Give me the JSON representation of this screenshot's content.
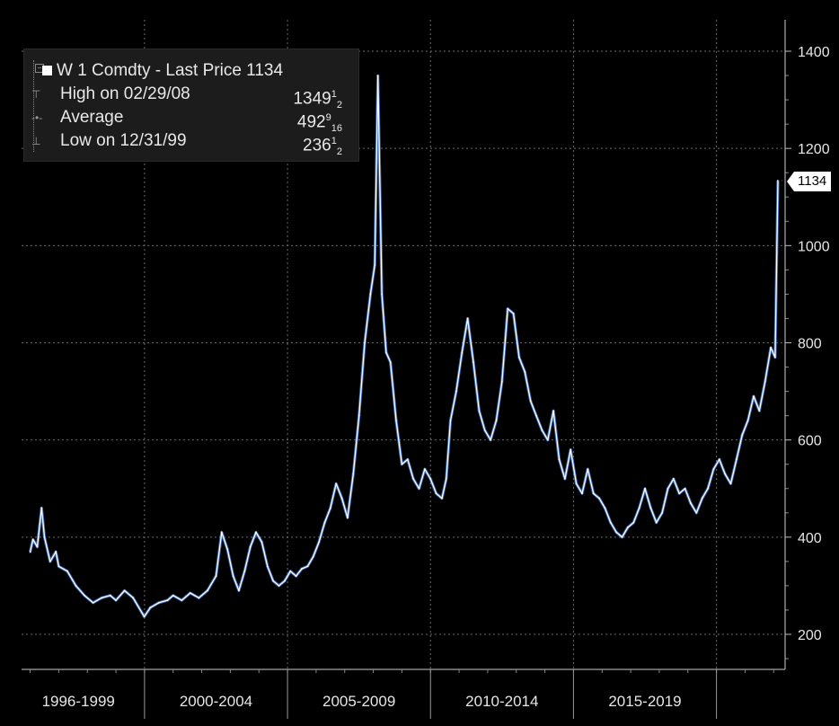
{
  "chart_data": {
    "type": "line",
    "ylim": [
      130,
      1440
    ],
    "ytick_labels": [
      "200",
      "400",
      "600",
      "800",
      "1000",
      "1200",
      "1400"
    ],
    "x_periods": [
      "1996-1999",
      "2000-2004",
      "2005-2009",
      "2010-2014",
      "2015-2019"
    ],
    "grid": true,
    "series": [
      {
        "points": [
          [
            1996.0,
            370
          ],
          [
            1996.1,
            395
          ],
          [
            1996.25,
            380
          ],
          [
            1996.4,
            460
          ],
          [
            1996.5,
            400
          ],
          [
            1996.7,
            350
          ],
          [
            1996.9,
            370
          ],
          [
            1997.0,
            340
          ],
          [
            1997.3,
            330
          ],
          [
            1997.6,
            300
          ],
          [
            1997.9,
            280
          ],
          [
            1998.2,
            265
          ],
          [
            1998.5,
            275
          ],
          [
            1998.8,
            280
          ],
          [
            1999.0,
            270
          ],
          [
            1999.3,
            290
          ],
          [
            1999.6,
            275
          ],
          [
            1999.99,
            236.5
          ],
          [
            2000.2,
            255
          ],
          [
            2000.5,
            265
          ],
          [
            2000.8,
            270
          ],
          [
            2001.0,
            280
          ],
          [
            2001.3,
            270
          ],
          [
            2001.6,
            285
          ],
          [
            2001.9,
            275
          ],
          [
            2002.2,
            290
          ],
          [
            2002.5,
            320
          ],
          [
            2002.7,
            410
          ],
          [
            2002.9,
            375
          ],
          [
            2003.1,
            320
          ],
          [
            2003.3,
            290
          ],
          [
            2003.5,
            330
          ],
          [
            2003.7,
            380
          ],
          [
            2003.9,
            410
          ],
          [
            2004.1,
            390
          ],
          [
            2004.3,
            340
          ],
          [
            2004.5,
            310
          ],
          [
            2004.7,
            300
          ],
          [
            2004.9,
            310
          ],
          [
            2005.1,
            330
          ],
          [
            2005.3,
            320
          ],
          [
            2005.5,
            335
          ],
          [
            2005.7,
            340
          ],
          [
            2005.9,
            360
          ],
          [
            2006.1,
            390
          ],
          [
            2006.3,
            430
          ],
          [
            2006.5,
            460
          ],
          [
            2006.7,
            510
          ],
          [
            2006.9,
            480
          ],
          [
            2007.1,
            440
          ],
          [
            2007.3,
            530
          ],
          [
            2007.5,
            650
          ],
          [
            2007.7,
            800
          ],
          [
            2007.9,
            900
          ],
          [
            2008.05,
            960
          ],
          [
            2008.16,
            1349.5
          ],
          [
            2008.3,
            900
          ],
          [
            2008.45,
            780
          ],
          [
            2008.6,
            760
          ],
          [
            2008.8,
            640
          ],
          [
            2009.0,
            550
          ],
          [
            2009.2,
            560
          ],
          [
            2009.4,
            520
          ],
          [
            2009.6,
            500
          ],
          [
            2009.8,
            540
          ],
          [
            2010.0,
            520
          ],
          [
            2010.2,
            490
          ],
          [
            2010.4,
            480
          ],
          [
            2010.55,
            520
          ],
          [
            2010.7,
            640
          ],
          [
            2010.9,
            700
          ],
          [
            2011.1,
            780
          ],
          [
            2011.3,
            850
          ],
          [
            2011.5,
            760
          ],
          [
            2011.7,
            660
          ],
          [
            2011.9,
            620
          ],
          [
            2012.1,
            600
          ],
          [
            2012.3,
            640
          ],
          [
            2012.5,
            720
          ],
          [
            2012.7,
            870
          ],
          [
            2012.9,
            860
          ],
          [
            2013.1,
            770
          ],
          [
            2013.3,
            740
          ],
          [
            2013.5,
            680
          ],
          [
            2013.7,
            650
          ],
          [
            2013.9,
            620
          ],
          [
            2014.1,
            600
          ],
          [
            2014.3,
            660
          ],
          [
            2014.5,
            560
          ],
          [
            2014.7,
            520
          ],
          [
            2014.9,
            580
          ],
          [
            2015.1,
            510
          ],
          [
            2015.3,
            490
          ],
          [
            2015.5,
            540
          ],
          [
            2015.7,
            490
          ],
          [
            2015.9,
            480
          ],
          [
            2016.1,
            460
          ],
          [
            2016.3,
            430
          ],
          [
            2016.5,
            410
          ],
          [
            2016.7,
            400
          ],
          [
            2016.9,
            420
          ],
          [
            2017.1,
            430
          ],
          [
            2017.3,
            460
          ],
          [
            2017.5,
            500
          ],
          [
            2017.7,
            460
          ],
          [
            2017.9,
            430
          ],
          [
            2018.1,
            450
          ],
          [
            2018.3,
            500
          ],
          [
            2018.5,
            520
          ],
          [
            2018.7,
            490
          ],
          [
            2018.9,
            500
          ],
          [
            2019.1,
            470
          ],
          [
            2019.3,
            450
          ],
          [
            2019.5,
            480
          ],
          [
            2019.7,
            500
          ],
          [
            2019.9,
            540
          ],
          [
            2020.1,
            560
          ],
          [
            2020.3,
            530
          ],
          [
            2020.5,
            510
          ],
          [
            2020.7,
            560
          ],
          [
            2020.9,
            610
          ],
          [
            2021.1,
            640
          ],
          [
            2021.3,
            690
          ],
          [
            2021.5,
            660
          ],
          [
            2021.7,
            720
          ],
          [
            2021.9,
            790
          ],
          [
            2022.05,
            770
          ],
          [
            2022.15,
            1134
          ]
        ]
      }
    ],
    "last_price": 1134,
    "legend": {
      "title": "W 1 Comdty - Last Price 1134",
      "rows": [
        {
          "label": "High on 02/29/08",
          "value": "1349",
          "frac_num": "1",
          "frac_den": "2"
        },
        {
          "label": "Average",
          "value": "492",
          "frac_num": "9",
          "frac_den": "16"
        },
        {
          "label": "Low on 12/31/99",
          "value": "236",
          "frac_num": "1",
          "frac_den": "2"
        }
      ]
    },
    "colors": {
      "background": "#000000",
      "line": "#ffffff",
      "fill": "#4a7fd6",
      "grid": "#6a6a6a",
      "legend_bg": "#1c1c1c",
      "tag_bg": "#ffffff"
    }
  }
}
